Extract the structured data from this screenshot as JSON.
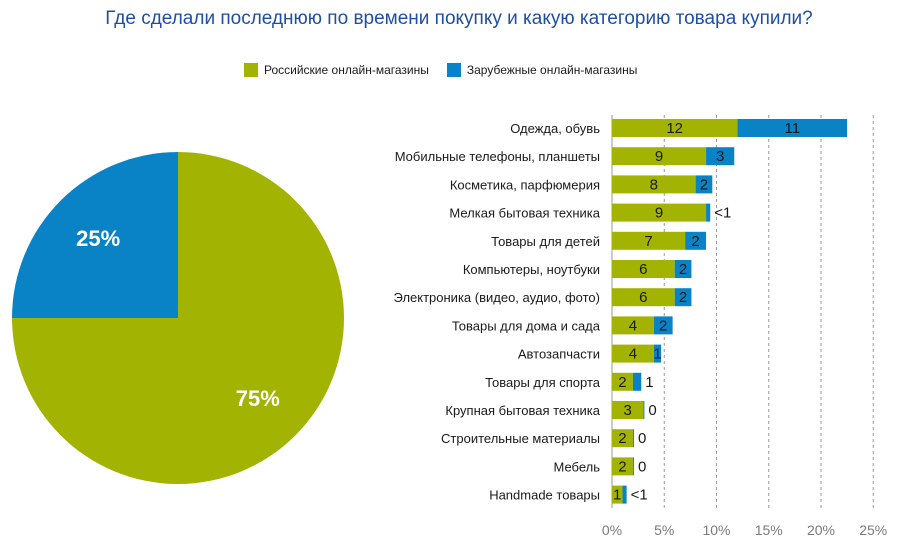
{
  "title": "Где сделали последнюю по времени покупку и какую категорию товара купили?",
  "colors": {
    "russian": "#a3b302",
    "foreign": "#0a83c6",
    "grid": "#9a9a9a"
  },
  "legend": [
    {
      "label": "Российские онлайн-магазины",
      "color": "#a3b302"
    },
    {
      "label": "Зарубежные онлайн-магазины",
      "color": "#0a83c6"
    }
  ],
  "chart_data": [
    {
      "type": "pie",
      "slices": [
        {
          "name": "Российские онлайн-магазины",
          "value": 75,
          "label": "75%",
          "color": "#a3b302"
        },
        {
          "name": "Зарубежные онлайн-магазины",
          "value": 25,
          "label": "25%",
          "color": "#0a83c6"
        }
      ]
    },
    {
      "type": "bar",
      "orientation": "horizontal",
      "stacked": true,
      "categories": [
        "Одежда, обувь",
        "Мобильные телефоны, планшеты",
        "Косметика, парфюмерия",
        "Мелкая бытовая техника",
        "Товары для детей",
        "Компьютеры, ноутбуки",
        "Электроника (видео, аудио, фото)",
        "Товары для дома и сада",
        "Автозапчасти",
        "Товары для спорта",
        "Крупная бытовая техника",
        "Строительные материалы",
        "Мебель",
        "Handmade товары"
      ],
      "series": [
        {
          "name": "Российские онлайн-магазины",
          "color": "#a3b302",
          "values": [
            12,
            9,
            8,
            9,
            7,
            6,
            6,
            4,
            4,
            2,
            3,
            2,
            2,
            1
          ],
          "labels": [
            "12",
            "9",
            "8",
            "9",
            "7",
            "6",
            "6",
            "4",
            "4",
            "2",
            "3",
            "2",
            "2",
            "1"
          ]
        },
        {
          "name": "Зарубежные онлайн-магазины",
          "color": "#0a83c6",
          "values": [
            10.5,
            2.7,
            1.6,
            0.4,
            2.0,
            1.6,
            1.6,
            1.8,
            0.7,
            0.8,
            0.1,
            0.1,
            0.1,
            0.4
          ],
          "labels": [
            "11",
            "3",
            "2",
            "<1",
            "2",
            "2",
            "2",
            "2",
            "1",
            "1",
            "0",
            "0",
            "0",
            "<1"
          ],
          "label_outside": [
            false,
            false,
            false,
            true,
            false,
            false,
            false,
            false,
            false,
            true,
            true,
            true,
            true,
            true
          ]
        }
      ],
      "xticks": [
        "0%",
        "5%",
        "10%",
        "15%",
        "20%",
        "25%"
      ],
      "xlim": [
        0,
        25
      ]
    }
  ]
}
